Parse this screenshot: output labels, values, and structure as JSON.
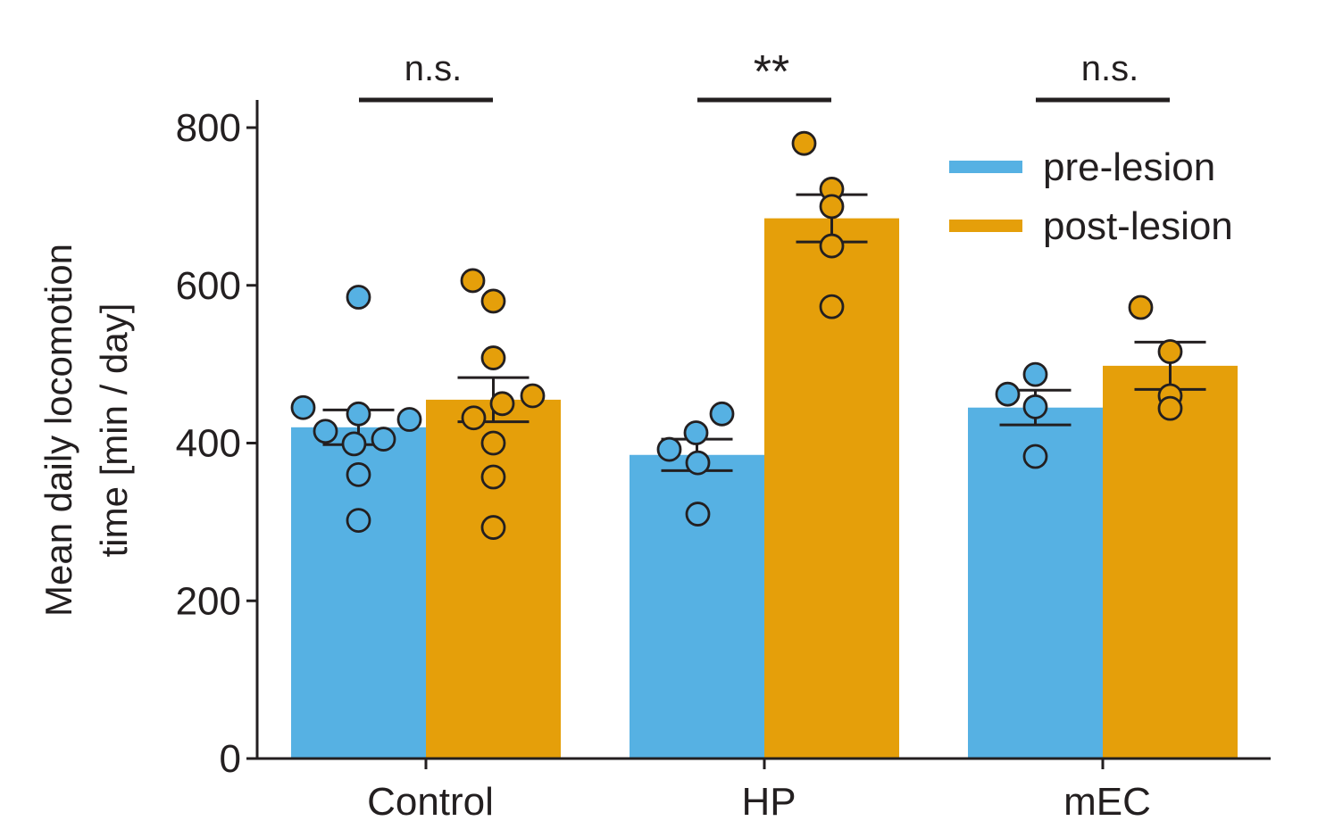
{
  "chart_data": {
    "type": "bar",
    "title": "",
    "xlabel": "",
    "ylabel_lines": [
      "Mean daily locomotion",
      "time [min / day]"
    ],
    "ylim": [
      0,
      800
    ],
    "yticks": [
      0,
      200,
      400,
      600,
      800
    ],
    "categories": [
      "Control",
      "HP",
      "mEC"
    ],
    "legend_position": "top-right",
    "series": [
      {
        "name": "pre-lesion",
        "color": "#56b1e3",
        "values": [
          420,
          385,
          445
        ],
        "sem": [
          22,
          20,
          22
        ],
        "points": [
          [
            445,
            415,
            399,
            437,
            405,
            430,
            585,
            360,
            302
          ],
          [
            392,
            413,
            437,
            375,
            310
          ],
          [
            462,
            487,
            446,
            383
          ]
        ]
      },
      {
        "name": "post-lesion",
        "color": "#e59f0a",
        "values": [
          455,
          685,
          498
        ],
        "sem": [
          28,
          30,
          30
        ],
        "points": [
          [
            606,
            580,
            508,
            460,
            450,
            432,
            400,
            357,
            293
          ],
          [
            780,
            722,
            700,
            650,
            573
          ],
          [
            572,
            516,
            460,
            444
          ]
        ]
      }
    ],
    "significance": [
      "n.s.",
      "**",
      "n.s."
    ]
  }
}
